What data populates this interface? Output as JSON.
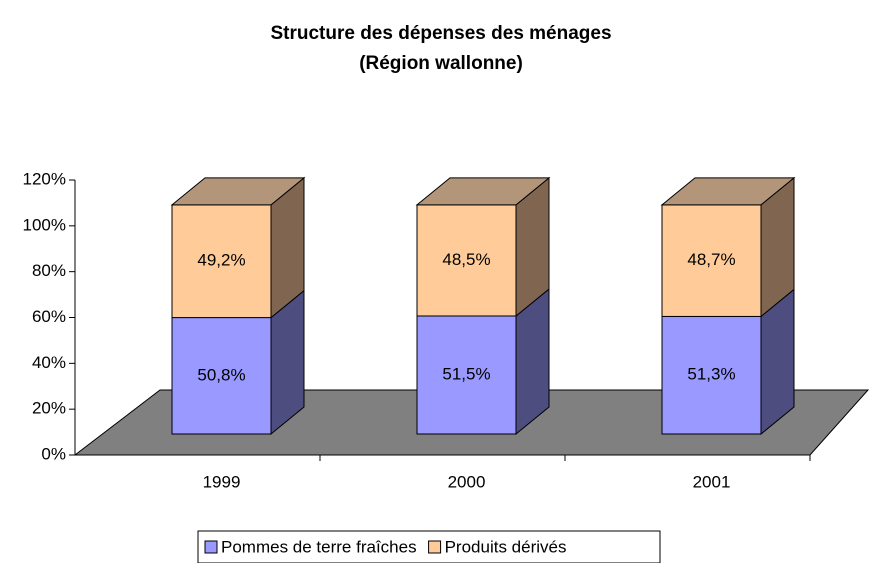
{
  "chart_data": {
    "type": "bar3d_stacked",
    "title": [
      "Structure des dépenses des ménages",
      "(Région wallonne)"
    ],
    "categories": [
      "1999",
      "2000",
      "2001"
    ],
    "series": [
      {
        "name": "Pommes de terre fraîches",
        "color": "#9999ff",
        "side_color": "#4d4d80",
        "top_color": "#b3b3ff",
        "values": [
          50.8,
          51.5,
          51.3
        ],
        "value_labels": [
          "50,8%",
          "51,5%",
          "51,3%"
        ]
      },
      {
        "name": "Produits dérivés",
        "color": "#ffcc99",
        "side_color": "#806650",
        "top_color": "#b3967a",
        "values": [
          49.2,
          48.5,
          48.7
        ],
        "value_labels": [
          "49,2%",
          "48,5%",
          "48,7%"
        ]
      }
    ],
    "ylim": [
      0,
      120
    ],
    "yticks": [
      {
        "value": 0,
        "label": "0%"
      },
      {
        "value": 20,
        "label": "20%"
      },
      {
        "value": 40,
        "label": "40%"
      },
      {
        "value": 60,
        "label": "60%"
      },
      {
        "value": 80,
        "label": "80%"
      },
      {
        "value": 100,
        "label": "100%"
      },
      {
        "value": 120,
        "label": "120%"
      }
    ],
    "floor_color": "#808080"
  }
}
